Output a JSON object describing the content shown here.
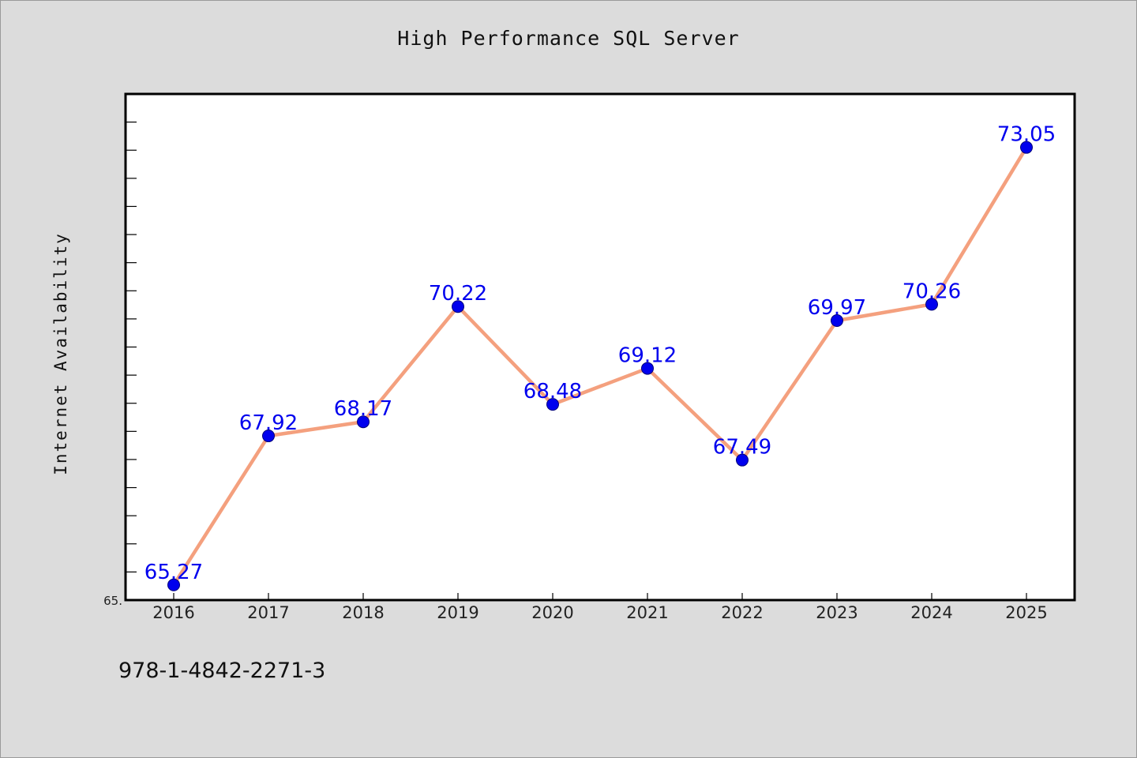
{
  "page": {
    "title": "High Performance SQL Server",
    "ylabel": "Internet Availability",
    "footer": "978-1-4842-2271-3",
    "ytick_label": "65."
  },
  "chart_data": {
    "type": "line",
    "title": "High Performance SQL Server",
    "xlabel": "",
    "ylabel": "Internet Availability",
    "categories": [
      "2016",
      "2017",
      "2018",
      "2019",
      "2020",
      "2021",
      "2022",
      "2023",
      "2024",
      "2025"
    ],
    "series": [
      {
        "values": [
          65.27,
          67.92,
          68.17,
          70.22,
          68.48,
          69.12,
          67.49,
          69.97,
          70.26,
          73.05
        ],
        "color": "#f4a07e",
        "marker_color": "#0000ee",
        "label_color": "#0000ee"
      }
    ],
    "data_labels": [
      "65.27",
      "67.92",
      "68.17",
      "70.22",
      "68.48",
      "69.12",
      "67.49",
      "69.97",
      "70.26",
      "73.05"
    ],
    "ylim": [
      65.0,
      74.0
    ],
    "grid": false,
    "legend": "none",
    "background_color": "#ffffff",
    "page_color": "#dcdcdc"
  }
}
